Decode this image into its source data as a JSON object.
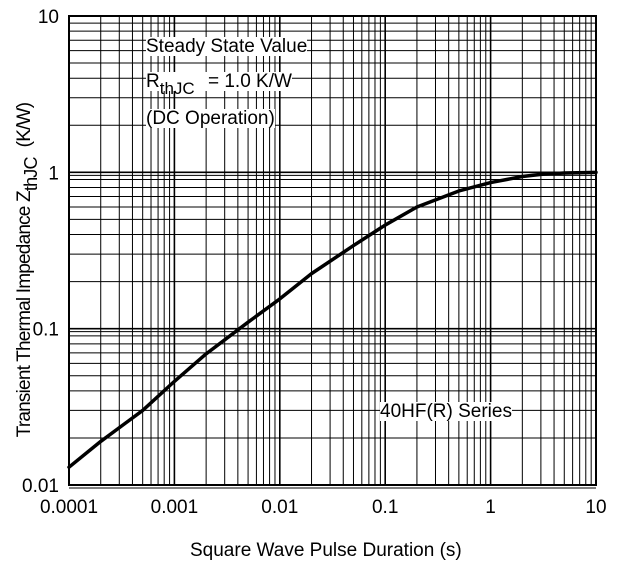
{
  "chart_data": {
    "type": "line",
    "xscale": "log",
    "yscale": "log",
    "xlim": [
      0.0001,
      10
    ],
    "ylim": [
      0.01,
      10
    ],
    "grid": true,
    "x_ticks": [
      "0.0001",
      "0.001",
      "0.01",
      "0.1",
      "1",
      "10"
    ],
    "y_ticks": [
      "0.01",
      "0.1",
      "1",
      "10"
    ],
    "ylabel": {
      "main": "Transient Thermal Impedance Z",
      "sub": "thJC",
      "unit": "(K/W)"
    },
    "xlabel": "Square Wave Pulse Duration (s)",
    "annotations": {
      "steady_state": "Steady State Value",
      "r_symbol": "R",
      "r_sub": "thJC",
      "r_value": "= 1.0 K/W",
      "dc": "(DC Operation)",
      "series_label": "40HF(R) Series"
    },
    "series": [
      {
        "x": [
          0.0001,
          0.0002,
          0.0005,
          0.001,
          0.002,
          0.005,
          0.01,
          0.02,
          0.05,
          0.1,
          0.2,
          0.5,
          1,
          2,
          3,
          5,
          10
        ],
        "y": [
          0.013,
          0.019,
          0.03,
          0.046,
          0.069,
          0.11,
          0.155,
          0.225,
          0.34,
          0.46,
          0.6,
          0.76,
          0.86,
          0.94,
          0.97,
          0.99,
          1.0
        ]
      }
    ]
  }
}
